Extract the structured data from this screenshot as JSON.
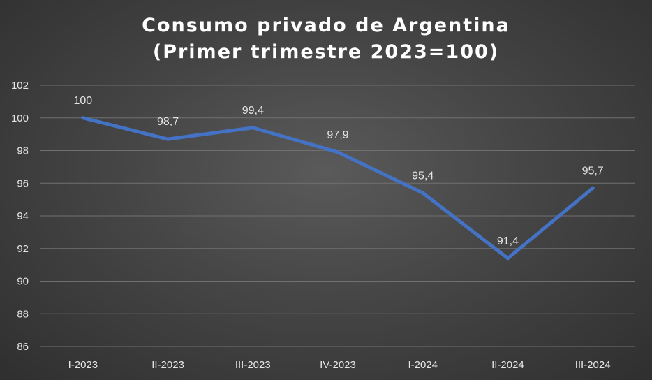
{
  "chart_data": {
    "type": "line",
    "title": "Consumo privado de Argentina",
    "subtitle": "(Primer trimestre 2023=100)",
    "categories": [
      "I-2023",
      "II-2023",
      "III-2023",
      "IV-2023",
      "I-2024",
      "II-2024",
      "III-2024"
    ],
    "values": [
      100,
      98.7,
      99.4,
      97.9,
      95.4,
      91.4,
      95.7
    ],
    "data_labels": [
      "100",
      "98,7",
      "99,4",
      "97,9",
      "95,4",
      "91,4",
      "95,7"
    ],
    "ylim": [
      86,
      102
    ],
    "yticks": [
      86,
      88,
      90,
      92,
      94,
      96,
      98,
      100,
      102
    ],
    "xlabel": "",
    "ylabel": "",
    "grid": true,
    "legend": "none",
    "colors": {
      "line": "#4472c4",
      "grid": "#707070",
      "text": "#e6e6e6",
      "title": "#ffffff"
    }
  }
}
